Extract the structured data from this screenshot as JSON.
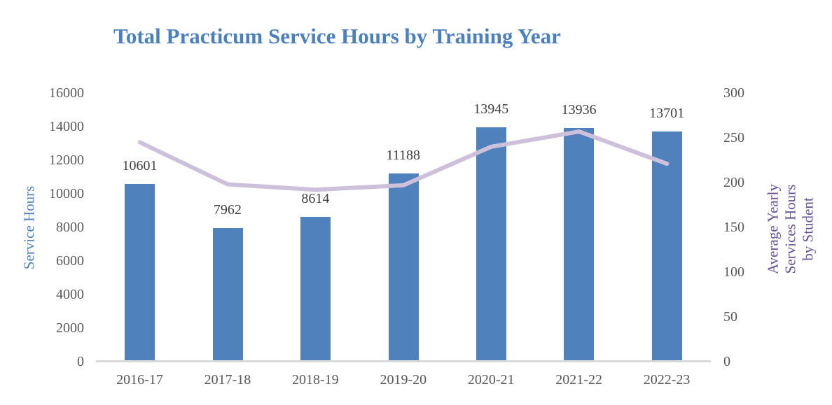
{
  "chart_data": {
    "type": "bar",
    "subtype": "combo-bar-line",
    "title": "Total Practicum Service Hours by Training Year",
    "categories": [
      "2016-17",
      "2017-18",
      "2018-19",
      "2019-20",
      "2020-21",
      "2021-22",
      "2022-23"
    ],
    "series": [
      {
        "name": "Service Hours",
        "type": "bar",
        "axis": "left",
        "values": [
          10601,
          7962,
          8614,
          11188,
          13945,
          13936,
          13701
        ],
        "color": "#4f81bd"
      },
      {
        "name": "Average Yearly Services Hours by Student",
        "type": "line",
        "axis": "right",
        "values": [
          245,
          198,
          192,
          197,
          240,
          257,
          221
        ],
        "color": "#ccc0da"
      }
    ],
    "data_labels_series": "Service Hours",
    "ylabel_left": "Service Hours",
    "ylabel_right": "Average Yearly\nServices Hours\nby Student",
    "ylim_left": [
      0,
      16000
    ],
    "ytick_step_left": 2000,
    "ylim_right": [
      0,
      300
    ],
    "ytick_step_right": 50,
    "grid": false,
    "legend_position": "none",
    "colors": {
      "title": "#4c80bc",
      "left_axis_title": "#4f81bd",
      "right_axis_title": "#645194",
      "tick_labels": "#595959",
      "data_labels": "#3f3f3f",
      "baseline": "#d9d9d9"
    }
  }
}
